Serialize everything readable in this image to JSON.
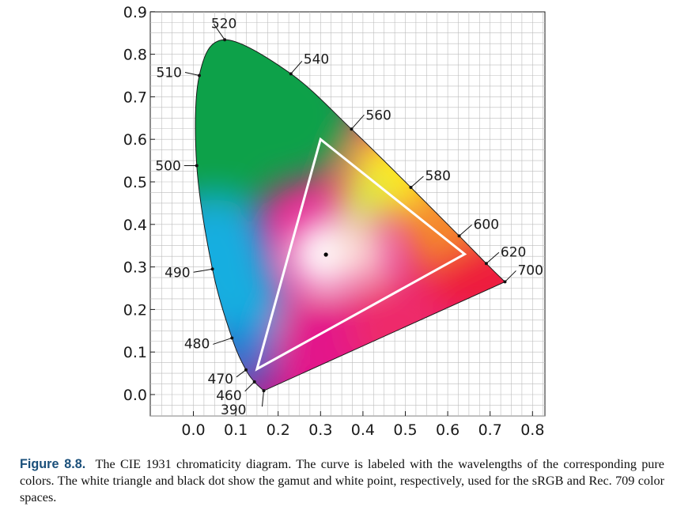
{
  "diagram": {
    "x_ticks": [
      "0.0",
      "0.1",
      "0.2",
      "0.3",
      "0.4",
      "0.5",
      "0.6",
      "0.7",
      "0.8"
    ],
    "y_ticks": [
      "0.0",
      "0.1",
      "0.2",
      "0.3",
      "0.4",
      "0.5",
      "0.6",
      "0.7",
      "0.8",
      "0.9"
    ],
    "x_range": [
      -0.1,
      0.85
    ],
    "y_range": [
      -0.05,
      0.9
    ],
    "grid": true,
    "spectral_locus": [
      {
        "nm": 390,
        "x": 0.166,
        "y": 0.009,
        "label": "390"
      },
      {
        "nm": 460,
        "x": 0.144,
        "y": 0.03,
        "label": "460"
      },
      {
        "nm": 470,
        "x": 0.124,
        "y": 0.058,
        "label": "470"
      },
      {
        "nm": 480,
        "x": 0.091,
        "y": 0.133,
        "label": "480"
      },
      {
        "nm": 490,
        "x": 0.045,
        "y": 0.295,
        "label": "490"
      },
      {
        "nm": 500,
        "x": 0.008,
        "y": 0.538,
        "label": "500"
      },
      {
        "nm": 510,
        "x": 0.014,
        "y": 0.75,
        "label": "510"
      },
      {
        "nm": 520,
        "x": 0.074,
        "y": 0.834,
        "label": "520"
      },
      {
        "nm": 540,
        "x": 0.23,
        "y": 0.754,
        "label": "540"
      },
      {
        "nm": 560,
        "x": 0.373,
        "y": 0.624,
        "label": "560"
      },
      {
        "nm": 580,
        "x": 0.513,
        "y": 0.487,
        "label": "580"
      },
      {
        "nm": 600,
        "x": 0.627,
        "y": 0.373,
        "label": "600"
      },
      {
        "nm": 620,
        "x": 0.691,
        "y": 0.308,
        "label": "620"
      },
      {
        "nm": 700,
        "x": 0.735,
        "y": 0.265,
        "label": "700"
      }
    ],
    "srgb_gamut": [
      {
        "name": "red",
        "x": 0.64,
        "y": 0.33
      },
      {
        "name": "green",
        "x": 0.3,
        "y": 0.6
      },
      {
        "name": "blue",
        "x": 0.15,
        "y": 0.06
      }
    ],
    "white_point": {
      "x": 0.3127,
      "y": 0.329
    },
    "colors": {
      "red": "#ee1c3a",
      "green": "#0aa14a",
      "blue": "#0a7bd6",
      "violet": "#6b2ba0",
      "magenta": "#e3188a",
      "yellow": "#ffe61a",
      "cyan": "#14aee0",
      "white": "#ffffff",
      "gamut_stroke": "#ffffff",
      "white_point": "#000000",
      "grid": "#bdbdbd",
      "caption_label": "#1a4f7a"
    }
  },
  "caption": {
    "label": "Figure 8.8.",
    "text": "The CIE 1931 chromaticity diagram.  The curve is labeled with the wavelengths of the corresponding pure colors. The white triangle and black dot show the gamut and white point, respectively, used for the sRGB and Rec. 709 color spaces."
  }
}
